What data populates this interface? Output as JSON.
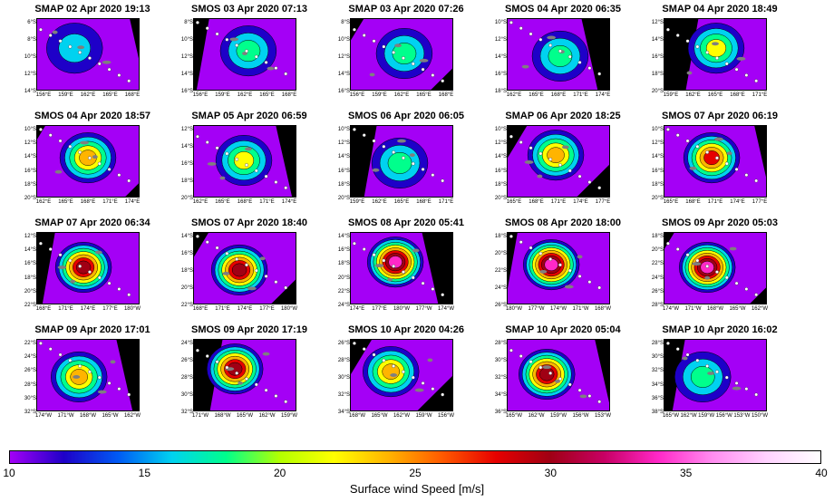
{
  "panels": [
    {
      "title": "SMAP  02 Apr 2020 19:13",
      "lat": [
        "6°S",
        "8°S",
        "10°S",
        "12°S",
        "14°S"
      ],
      "lon": [
        "156°E",
        "159°E",
        "162°E",
        "165°E",
        "168°E"
      ],
      "peak": 15
    },
    {
      "title": "SMOS  03 Apr 2020 07:13",
      "lat": [
        "8°S",
        "10°S",
        "12°S",
        "14°S",
        "16°S"
      ],
      "lon": [
        "156°E",
        "159°E",
        "162°E",
        "165°E",
        "168°E"
      ],
      "peak": 19
    },
    {
      "title": "SMAP  03 Apr 2020 07:26",
      "lat": [
        "8°S",
        "10°S",
        "12°S",
        "14°S",
        "16°S"
      ],
      "lon": [
        "156°E",
        "159°E",
        "162°E",
        "165°E",
        "168°E"
      ],
      "peak": 19
    },
    {
      "title": "SMOS  04 Apr 2020 06:35",
      "lat": [
        "10°S",
        "12°S",
        "14°S",
        "16°S",
        "18°S"
      ],
      "lon": [
        "162°E",
        "165°E",
        "168°E",
        "171°E",
        "174°E"
      ],
      "peak": 20
    },
    {
      "title": "SMAP  04 Apr 2020 18:49",
      "lat": [
        "12°S",
        "14°S",
        "16°S",
        "18°S",
        "20°S"
      ],
      "lon": [
        "159°E",
        "162°E",
        "165°E",
        "168°E",
        "171°E"
      ],
      "peak": 22
    },
    {
      "title": "SMOS  04 Apr 2020 18:57",
      "lat": [
        "10°S",
        "12°S",
        "14°S",
        "16°S",
        "18°S",
        "20°S"
      ],
      "lon": [
        "162°E",
        "165°E",
        "168°E",
        "171°E",
        "174°E"
      ],
      "peak": 24
    },
    {
      "title": "SMAP  05 Apr 2020 06:59",
      "lat": [
        "12°S",
        "14°S",
        "16°S",
        "18°S",
        "20°S"
      ],
      "lon": [
        "162°E",
        "165°E",
        "168°E",
        "171°E",
        "174°E"
      ],
      "peak": 22
    },
    {
      "title": "SMOS  06 Apr 2020 06:05",
      "lat": [
        "10°S",
        "12°S",
        "14°S",
        "16°S",
        "18°S",
        "20°S"
      ],
      "lon": [
        "159°E",
        "162°E",
        "165°E",
        "168°E",
        "171°E"
      ],
      "peak": 19
    },
    {
      "title": "SMAP  06 Apr 2020 18:25",
      "lat": [
        "10°S",
        "12°S",
        "14°S",
        "16°S",
        "18°S",
        "20°S"
      ],
      "lon": [
        "165°E",
        "168°E",
        "171°E",
        "174°E",
        "177°E"
      ],
      "peak": 24
    },
    {
      "title": "SMOS  07 Apr 2020 06:19",
      "lat": [
        "10°S",
        "12°S",
        "14°S",
        "16°S",
        "18°S",
        "20°S"
      ],
      "lon": [
        "165°E",
        "168°E",
        "171°E",
        "174°E",
        "177°E"
      ],
      "peak": 28
    },
    {
      "title": "SMAP  07 Apr 2020 06:34",
      "lat": [
        "12°S",
        "14°S",
        "16°S",
        "18°S",
        "20°S",
        "22°S"
      ],
      "lon": [
        "168°E",
        "171°E",
        "174°E",
        "177°E",
        "180°W"
      ],
      "peak": 30
    },
    {
      "title": "SMOS  07 Apr 2020 18:40",
      "lat": [
        "14°S",
        "16°S",
        "18°S",
        "20°S",
        "22°S"
      ],
      "lon": [
        "168°E",
        "171°E",
        "174°E",
        "177°E",
        "180°W"
      ],
      "peak": 32
    },
    {
      "title": "SMOS  08 Apr 2020 05:41",
      "lat": [
        "14°S",
        "16°S",
        "18°S",
        "20°S",
        "22°S",
        "24°S"
      ],
      "lon": [
        "174°E",
        "177°E",
        "180°W",
        "177°W",
        "174°W"
      ],
      "peak": 34
    },
    {
      "title": "SMOS  08 Apr 2020 18:00",
      "lat": [
        "18°S",
        "20°S",
        "22°S",
        "24°S",
        "26°S"
      ],
      "lon": [
        "180°W",
        "177°W",
        "174°W",
        "171°W",
        "168°W"
      ],
      "peak": 33
    },
    {
      "title": "SMOS  09 Apr 2020 05:03",
      "lat": [
        "18°S",
        "20°S",
        "22°S",
        "24°S",
        "26°S",
        "28°S"
      ],
      "lon": [
        "174°W",
        "171°W",
        "168°W",
        "165°W",
        "162°W"
      ],
      "peak": 34
    },
    {
      "title": "SMAP  09 Apr 2020 17:01",
      "lat": [
        "22°S",
        "24°S",
        "26°S",
        "28°S",
        "30°S",
        "32°S"
      ],
      "lon": [
        "174°W",
        "171°W",
        "168°W",
        "165°W",
        "162°W"
      ],
      "peak": 24
    },
    {
      "title": "SMOS  09 Apr 2020 17:19",
      "lat": [
        "24°S",
        "26°S",
        "28°S",
        "30°S",
        "32°S"
      ],
      "lon": [
        "171°W",
        "168°W",
        "165°W",
        "162°W",
        "159°W"
      ],
      "peak": 32
    },
    {
      "title": "SMOS  10 Apr 2020 04:26",
      "lat": [
        "26°S",
        "28°S",
        "30°S",
        "32°S",
        "34°S"
      ],
      "lon": [
        "168°W",
        "165°W",
        "162°W",
        "159°W",
        "156°W"
      ],
      "peak": 25
    },
    {
      "title": "SMAP  10 Apr 2020 05:04",
      "lat": [
        "28°S",
        "30°S",
        "32°S",
        "34°S",
        "36°S"
      ],
      "lon": [
        "165°W",
        "162°W",
        "159°W",
        "156°W",
        "153°W"
      ],
      "peak": 32
    },
    {
      "title": "SMAP  10 Apr 2020 16:02",
      "lat": [
        "28°S",
        "30°S",
        "32°S",
        "34°S",
        "36°S",
        "38°S"
      ],
      "lon": [
        "165°W",
        "162°W",
        "159°W",
        "156°W",
        "153°W",
        "150°W"
      ],
      "peak": 18
    }
  ],
  "colorbar": {
    "title": "Surface wind Speed [m/s]",
    "min": 10,
    "max": 40,
    "ticks": [
      "10",
      "15",
      "20",
      "25",
      "30",
      "35",
      "40"
    ],
    "stops": [
      "#a400f6",
      "#1e00c8",
      "#005af5",
      "#00d2f0",
      "#00ff8c",
      "#b4ff00",
      "#ffff00",
      "#ffb400",
      "#ff5a00",
      "#e60000",
      "#a00014",
      "#c80064",
      "#ff28c8",
      "#ff8cf0",
      "#ffd2ff",
      "#ffffff"
    ]
  }
}
